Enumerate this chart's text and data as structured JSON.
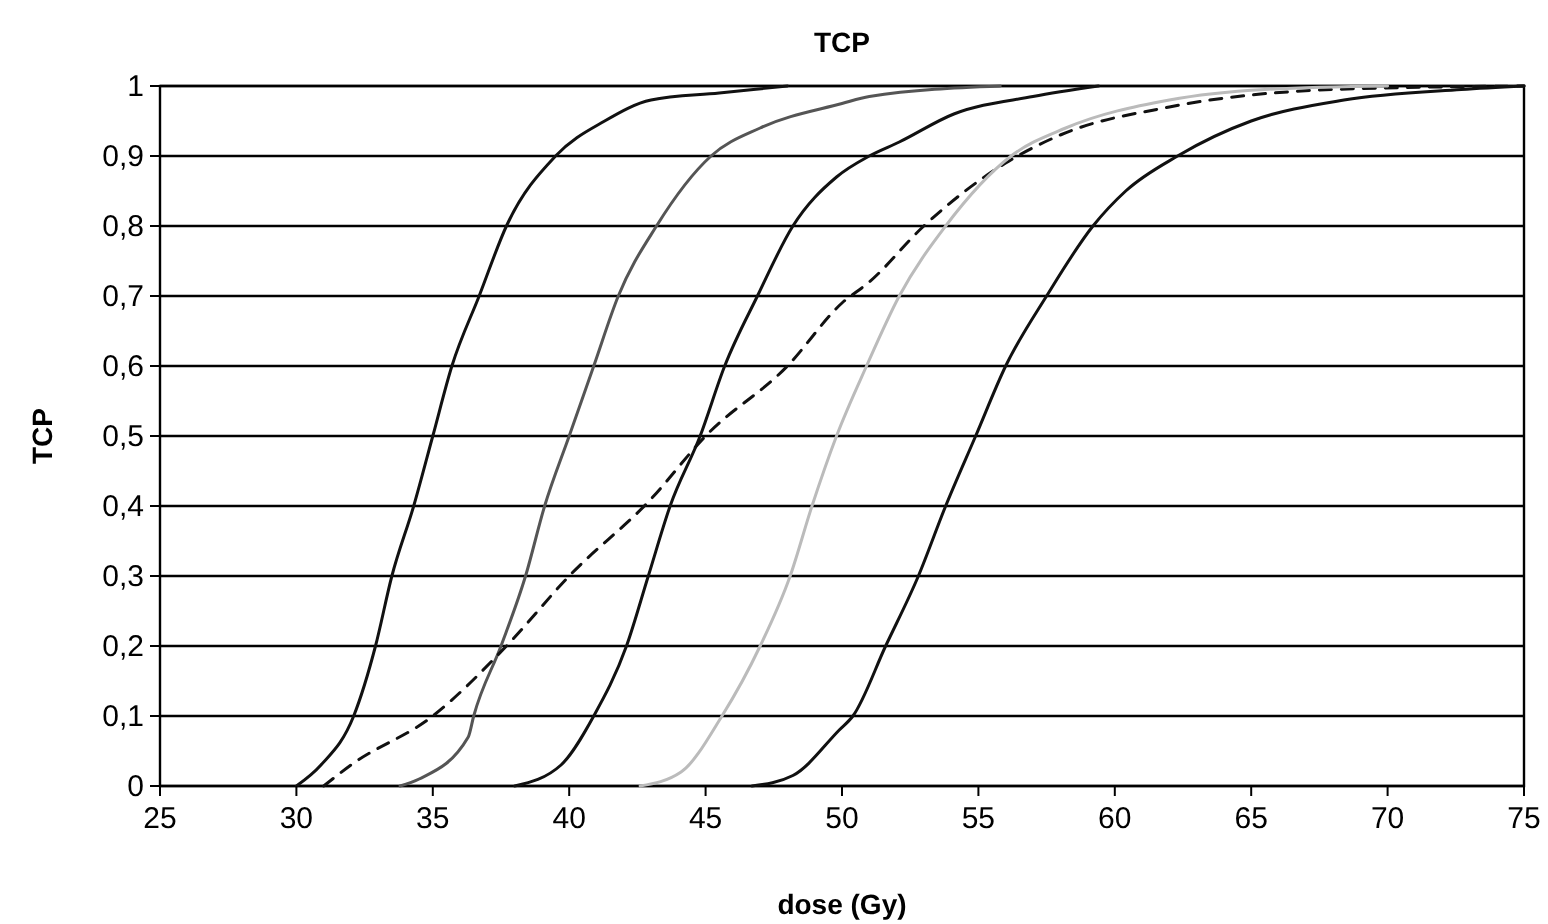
{
  "chart_data": {
    "type": "line",
    "title": "TCP",
    "xlabel": "dose (Gy)",
    "ylabel": "TCP",
    "xlim": [
      25,
      75
    ],
    "xticks": [
      25,
      30,
      35,
      40,
      45,
      50,
      55,
      60,
      65,
      70,
      75
    ],
    "ylim": [
      0,
      1
    ],
    "yticks": [
      0,
      {
        "value": 0.1,
        "label": "0,1"
      },
      {
        "value": 0.2,
        "label": "0,2"
      },
      {
        "value": 0.3,
        "label": "0,3"
      },
      {
        "value": 0.4,
        "label": "0,4"
      },
      {
        "value": 0.5,
        "label": "0,5"
      },
      {
        "value": 0.6,
        "label": "0,6"
      },
      {
        "value": 0.7,
        "label": "0,7"
      },
      {
        "value": 0.8,
        "label": "0,8"
      },
      {
        "value": 0.9,
        "label": "0,9"
      },
      1
    ],
    "grid": "y",
    "marker": "none",
    "line_style": "solid",
    "series": [
      {
        "color": "#111111",
        "x": [
          30,
          30.9,
          32.1,
          32.9,
          33.5,
          34.3,
          35,
          35.7,
          36.7,
          37.7,
          39.5,
          41.3,
          43,
          45.5,
          48
        ],
        "values": [
          0,
          0.03,
          0.1,
          0.2,
          0.3,
          0.4,
          0.5,
          0.6,
          0.7,
          0.8,
          0.9,
          0.95,
          0.98,
          0.99,
          1
        ]
      },
      {
        "color": "#555555",
        "x": [
          33.8,
          34.5,
          36.3,
          36.5,
          37.5,
          38.4,
          39.1,
          40,
          40.9,
          41.8,
          43.2,
          45.2,
          47,
          50,
          51,
          55.8
        ],
        "values": [
          0,
          0.01,
          0.07,
          0.1,
          0.2,
          0.3,
          0.4,
          0.5,
          0.6,
          0.7,
          0.8,
          0.9,
          0.94,
          0.975,
          0.985,
          1
        ]
      },
      {
        "color": "#111111",
        "x": [
          38,
          39.7,
          40.9,
          42.1,
          42.9,
          43.7,
          44.8,
          45.7,
          46.9,
          48.2,
          49.8,
          51,
          52.1,
          54.1,
          57,
          59.4
        ],
        "values": [
          0,
          0.03,
          0.1,
          0.2,
          0.3,
          0.4,
          0.5,
          0.6,
          0.7,
          0.8,
          0.87,
          0.9,
          0.92,
          0.96,
          0.985,
          1
        ]
      },
      {
        "color": "#111111",
        "line_style": "dashed",
        "x": [
          31,
          32,
          35,
          37.7,
          40,
          43,
          45,
          48,
          50,
          51,
          53,
          56,
          58,
          62,
          68,
          75
        ],
        "values": [
          0,
          0.03,
          0.1,
          0.2,
          0.3,
          0.41,
          0.5,
          0.6,
          0.69,
          0.72,
          0.8,
          0.89,
          0.93,
          0.97,
          0.995,
          1
        ]
      },
      {
        "color": "#bbbbbb",
        "x": [
          42.6,
          44.1,
          45.6,
          47,
          48.1,
          48.9,
          49.8,
          50.9,
          52.1,
          53.8,
          56.2,
          58.2,
          62,
          65.5,
          70
        ],
        "values": [
          0,
          0.02,
          0.1,
          0.2,
          0.3,
          0.4,
          0.5,
          0.6,
          0.7,
          0.8,
          0.9,
          0.94,
          0.98,
          0.995,
          1
        ]
      },
      {
        "color": "#111111",
        "x": [
          46.7,
          48.2,
          49.9,
          50.4,
          51.6,
          52.8,
          53.8,
          54.9,
          56,
          57.5,
          59.2,
          60.4,
          62.3,
          65,
          68.4,
          72.7,
          75
        ],
        "values": [
          0,
          0.015,
          0.08,
          0.1,
          0.2,
          0.3,
          0.4,
          0.5,
          0.6,
          0.7,
          0.8,
          0.85,
          0.9,
          0.95,
          0.98,
          0.995,
          1
        ]
      }
    ]
  }
}
